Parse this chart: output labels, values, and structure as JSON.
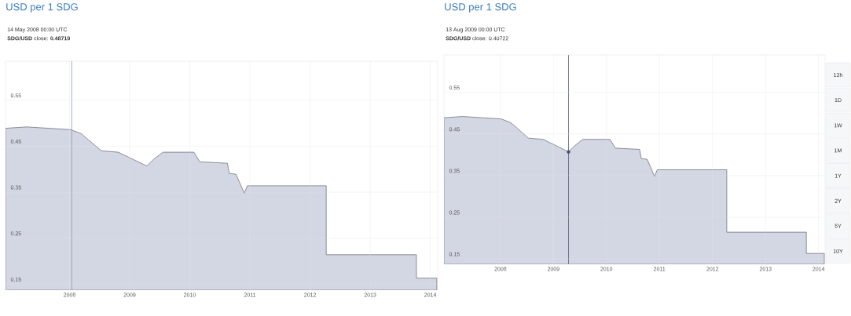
{
  "chart_data": [
    {
      "type": "area",
      "title": "USD per 1 SDG",
      "annotations": [
        "14 May 2008 00:00 UTC",
        "**SDG/USD** close: **0.48719**"
      ],
      "x": [
        "2007-04-08",
        "2007-08-15",
        "2008-05-08",
        "2008-07-12",
        "2008-11-10",
        "2009-02-20",
        "2009-08-13",
        "2009-09-25",
        "2009-11-20",
        "2010-05-26",
        "2010-07-01",
        "2010-12-16",
        "2010-12-27",
        "2011-02-06",
        "2011-03-28",
        "2011-04-16",
        "2012-08-07",
        "2012-08-07",
        "2014-02-06",
        "2014-02-06",
        "2014-06-10"
      ],
      "series": [
        {
          "color": "#d3d6e3",
          "values": [
            0.489,
            0.492,
            0.486,
            0.477,
            0.44,
            0.437,
            0.407,
            0.422,
            0.437,
            0.437,
            0.416,
            0.413,
            0.391,
            0.389,
            0.348,
            0.364,
            0.364,
            0.214,
            0.214,
            0.163,
            0.163
          ]
        }
      ],
      "xlim": [
        "2007-04-08",
        "2014-06-15"
      ],
      "ylim": [
        0.137,
        0.635
      ],
      "xticks": [
        {
          "value": "2008-05-01",
          "label": "2008"
        },
        {
          "value": "2009-05-01",
          "label": "2009"
        },
        {
          "value": "2010-05-01",
          "label": "2010"
        },
        {
          "value": "2011-05-01",
          "label": "2011"
        },
        {
          "value": "2012-05-01",
          "label": "2012"
        },
        {
          "value": "2013-05-01",
          "label": "2013"
        },
        {
          "value": "2014-05-01",
          "label": "2014"
        }
      ],
      "yticks": [
        0.15,
        0.25,
        0.35,
        0.45,
        0.55
      ],
      "ref_lines": [
        {
          "axis": "x",
          "value": "2008-05-14",
          "color": "#8a8fa8"
        }
      ],
      "grid": true
    },
    {
      "type": "area",
      "title": "USD per 1 SDG",
      "annotations": [
        "13 Aug 2009 00:00 UTC",
        "**SDG/USD** close: 0.40722",
        "12h",
        "1D",
        "1W",
        "1M",
        "1Y",
        "2Y",
        "5Y",
        "10Y"
      ],
      "x": [
        "2007-04-08",
        "2007-08-15",
        "2008-05-08",
        "2008-07-12",
        "2008-11-10",
        "2009-02-20",
        "2009-08-13",
        "2009-09-25",
        "2009-11-20",
        "2010-05-26",
        "2010-07-01",
        "2010-12-16",
        "2010-12-27",
        "2011-02-06",
        "2011-03-28",
        "2011-04-16",
        "2012-08-07",
        "2012-08-07",
        "2014-02-06",
        "2014-02-06",
        "2014-06-10"
      ],
      "series": [
        {
          "color": "#d3d6e3",
          "values": [
            0.489,
            0.492,
            0.486,
            0.477,
            0.44,
            0.437,
            0.407,
            0.422,
            0.437,
            0.437,
            0.416,
            0.413,
            0.391,
            0.389,
            0.348,
            0.364,
            0.364,
            0.214,
            0.214,
            0.163,
            0.163
          ]
        },
        {
          "type": "scatter",
          "x": [
            "2009-08-13"
          ],
          "values": [
            0.407
          ],
          "color": "#4a4f6e"
        }
      ],
      "xlim": [
        "2007-04-08",
        "2014-06-15"
      ],
      "ylim": [
        0.137,
        0.64
      ],
      "xticks": [
        {
          "value": "2008-05-01",
          "label": "2008"
        },
        {
          "value": "2009-05-01",
          "label": "2009"
        },
        {
          "value": "2010-05-01",
          "label": "2010"
        },
        {
          "value": "2011-05-01",
          "label": "2011"
        },
        {
          "value": "2012-05-01",
          "label": "2012"
        },
        {
          "value": "2013-05-01",
          "label": "2013"
        },
        {
          "value": "2014-05-01",
          "label": "2014"
        }
      ],
      "yticks": [
        0.15,
        0.25,
        0.35,
        0.45,
        0.55
      ],
      "ref_lines": [
        {
          "axis": "x",
          "value": "2009-08-13",
          "color": "#555a70"
        }
      ],
      "grid": true
    }
  ]
}
